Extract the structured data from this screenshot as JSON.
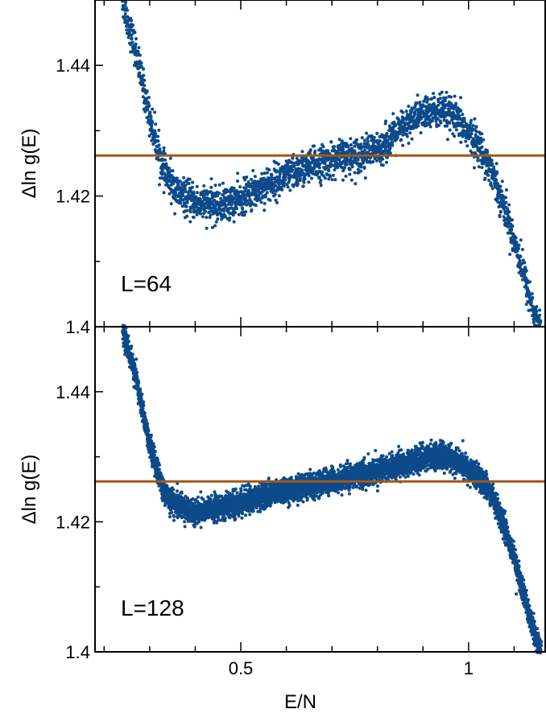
{
  "colors": {
    "points": "#0d4a8a",
    "reference_line": "#a0581a",
    "axes": "#000000"
  },
  "chart_data": [
    {
      "type": "scatter",
      "panel_label": "L=64",
      "xlabel": "",
      "ylabel": "Δln g(E)",
      "xlim": [
        0.18,
        1.17
      ],
      "ylim": [
        1.4,
        1.45
      ],
      "xticks": [
        0.5,
        1.0
      ],
      "xtick_labels": [
        "",
        ""
      ],
      "yticks": [
        1.4,
        1.42,
        1.44
      ],
      "ytick_labels": [
        "1.4",
        "1.42",
        "1.44"
      ],
      "reference_line_y": 1.4262,
      "noise": 0.0013,
      "trend": [
        [
          0.24,
          1.45
        ],
        [
          0.27,
          1.442
        ],
        [
          0.3,
          1.432
        ],
        [
          0.33,
          1.424
        ],
        [
          0.36,
          1.4205
        ],
        [
          0.4,
          1.419
        ],
        [
          0.45,
          1.4185
        ],
        [
          0.5,
          1.4195
        ],
        [
          0.55,
          1.4215
        ],
        [
          0.6,
          1.423
        ],
        [
          0.65,
          1.4245
        ],
        [
          0.7,
          1.4255
        ],
        [
          0.75,
          1.4262
        ],
        [
          0.8,
          1.427
        ],
        [
          0.85,
          1.43
        ],
        [
          0.88,
          1.432
        ],
        [
          0.92,
          1.433
        ],
        [
          0.96,
          1.4325
        ],
        [
          0.99,
          1.4305
        ],
        [
          1.02,
          1.428
        ],
        [
          1.05,
          1.424
        ],
        [
          1.08,
          1.418
        ],
        [
          1.11,
          1.411
        ],
        [
          1.14,
          1.403
        ],
        [
          1.16,
          1.399
        ]
      ]
    },
    {
      "type": "scatter",
      "panel_label": "L=128",
      "xlabel": "E/N",
      "ylabel": "Δln g(E)",
      "xlim": [
        0.18,
        1.17
      ],
      "ylim": [
        1.4,
        1.45
      ],
      "xticks": [
        0.5,
        1.0
      ],
      "xtick_labels": [
        "0.5",
        "1"
      ],
      "yticks": [
        1.4,
        1.42,
        1.44
      ],
      "ytick_labels": [
        "1.4",
        "1.42",
        "1.44"
      ],
      "reference_line_y": 1.4262,
      "noise": 0.0009,
      "trend": [
        [
          0.24,
          1.45
        ],
        [
          0.27,
          1.442
        ],
        [
          0.3,
          1.432
        ],
        [
          0.33,
          1.4245
        ],
        [
          0.36,
          1.4225
        ],
        [
          0.4,
          1.4215
        ],
        [
          0.45,
          1.422
        ],
        [
          0.5,
          1.423
        ],
        [
          0.55,
          1.424
        ],
        [
          0.6,
          1.4248
        ],
        [
          0.65,
          1.4255
        ],
        [
          0.7,
          1.4262
        ],
        [
          0.75,
          1.427
        ],
        [
          0.8,
          1.4278
        ],
        [
          0.85,
          1.4288
        ],
        [
          0.9,
          1.4298
        ],
        [
          0.94,
          1.4302
        ],
        [
          0.98,
          1.429
        ],
        [
          1.02,
          1.427
        ],
        [
          1.05,
          1.4245
        ],
        [
          1.08,
          1.419
        ],
        [
          1.11,
          1.412
        ],
        [
          1.14,
          1.404
        ],
        [
          1.16,
          1.3995
        ]
      ]
    }
  ]
}
